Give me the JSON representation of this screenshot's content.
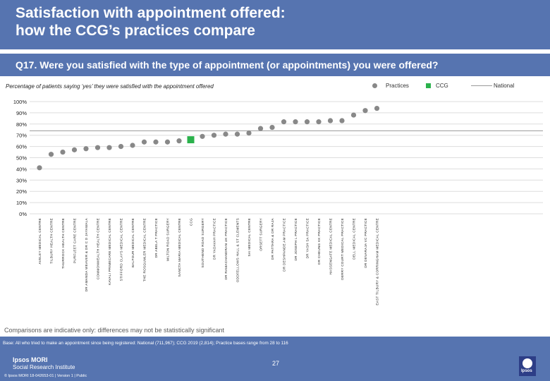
{
  "header": {
    "title_line1": "Satisfaction with appointment offered:",
    "title_line2": "how the CCG’s practices compare"
  },
  "question": "Q17. Were you satisfied with the type of appointment (or appointments) you were offered?",
  "subtitle": "Percentage of patients saying ‘yes’ they were satisfied with the appointment offered",
  "legend": {
    "practices": "Practices",
    "ccg": "CCG",
    "national": "National"
  },
  "colors": {
    "header": "#5674b0",
    "practice": "#888888",
    "ccg": "#2bb24c",
    "national": "#999999",
    "grid": "#dddddd"
  },
  "chart_data": {
    "type": "scatter",
    "title": "Percentage of patients saying ‘yes’ they were satisfied with the appointment offered",
    "ylim": [
      0,
      100
    ],
    "yticks": [
      "0%",
      "10%",
      "20%",
      "30%",
      "40%",
      "50%",
      "60%",
      "70%",
      "80%",
      "90%",
      "100%"
    ],
    "ytick_values": [
      0,
      10,
      20,
      30,
      40,
      50,
      60,
      70,
      80,
      90,
      100
    ],
    "national_value": 74,
    "categories": [
      "AVELEY MEDICAL CENTRE",
      "TILBURY HEALTH CENTRE",
      "THURROCK HEALTH CENTRE",
      "PURFLEET CARE CENTRE",
      "DR AMANDA WEAVER & DR C D JAYAWALA",
      "COMMONWEALTH HEALTH CENTRE",
      "KAVALI PRIMECARE MEDICAL CENTRE",
      "STIFFORD CLAYS MEDICAL CENTRE",
      "BALFOUR MEDICAL CENTRE",
      "THE ROSGUMLER MEDICAL CENTRE",
      "DR ABELA T PRACTICE",
      "MILTON ROAD SURGERY",
      "SANCTA MARIA MEDICAL CENTRE",
      "CCG",
      "SOUTHEND ROAD SURGERY",
      "DR YADAVAH PRACTICE",
      "DR RAMACHANDRAN UK PRACTICE",
      "ODDFELLOWS HALL & ST CLEMENTS",
      "SAI MEDICAL CENTRE",
      "ORSETT SURGERY",
      "DR PATTARA & DR RAJA",
      "DR DESHPANDE AM PRACTICE",
      "DR JOSEPH L PRACTICE",
      "DR YASH SA PRACTICE",
      "DR CHEUNG KK PRACTICE",
      "HASSENGATE MEDICAL CENTRE",
      "DERRY COURT MEDICAL PRACTICE",
      "DELL MEDICAL CENTRE",
      "DR DEVARAJA VC PRACTICE",
      "EAST TILBURY & CORRINGHAM MEDICAL CENTRE"
    ],
    "values": [
      41,
      53,
      55,
      57,
      58,
      59,
      59,
      60,
      61,
      64,
      64,
      64,
      65,
      66,
      69,
      70,
      71,
      71,
      72,
      76,
      77,
      82,
      82,
      82,
      82,
      83,
      83,
      88,
      92,
      94
    ],
    "highlight_index": 13
  },
  "comparisons_note": "Comparisons are indicative only: differences may not be statistically significant",
  "base_note": "Base: All who tried to make an appointment since being registered: National (711,967); CCG 2019 (2,814); Practice bases range from 28 to 116",
  "footer": {
    "logo_line1": "Ipsos MORI",
    "logo_line2": "Social Research Institute",
    "copyright": "© Ipsos MORI    18-042653-01 | Version 1 | Public",
    "page_number": "27",
    "brand": "Ipsos"
  }
}
